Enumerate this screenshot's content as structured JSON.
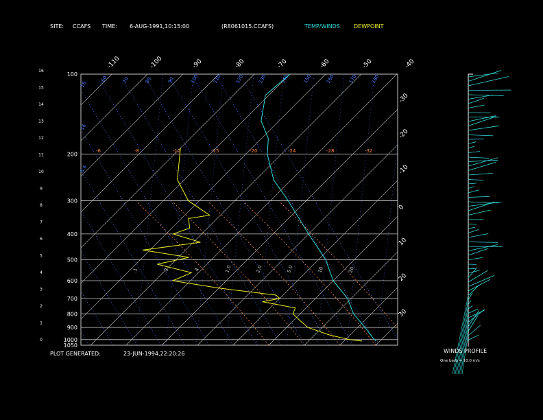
{
  "header": {
    "site_label": "SITE:",
    "site_value": "CCAFS",
    "time_label": "TIME:",
    "time_value": "6-AUG-1991,10:15:00",
    "file_id": "(R8061015.CCAFS)",
    "legend_temp": "TEMP/WINDS",
    "legend_dew": "DEWPOINT"
  },
  "footer": {
    "generated_label": "PLOT GENERATED:",
    "generated_value": "23-JUN-1994,22:20:26"
  },
  "winds": {
    "title": "WINDS PROFILE",
    "note": "One barb = 10.0 m/s"
  },
  "colors": {
    "background": "#000000",
    "grid": "#c8c8c8",
    "temp": "#33dddd",
    "dew": "#eeee22",
    "blue": "#4a78ff",
    "orange": "#ff8844",
    "header_text": "#ffffff"
  },
  "chart_data": {
    "type": "line",
    "title": "",
    "y_scale": "log pressure",
    "pressure_levels": [
      "100",
      "200",
      "300",
      "400",
      "500",
      "600",
      "700",
      "800",
      "900",
      "1000",
      "1050"
    ],
    "height_ticks": [
      "0",
      "1",
      "2",
      "3",
      "4",
      "5",
      "6",
      "7",
      "8",
      "9",
      "10",
      "11",
      "12",
      "13",
      "14",
      "15",
      "16"
    ],
    "isotherm_top_labels": [
      "-110",
      "-100",
      "-90",
      "-80",
      "-70",
      "-60",
      "-50",
      "-40"
    ],
    "isotherm_right_labels": [
      "-30",
      "-20",
      "-10",
      "0",
      "10",
      "20",
      "30"
    ],
    "ylim": [
      1050,
      100
    ],
    "series": [
      {
        "name": "TEMP/WINDS",
        "points": [
          [
            100,
            -70
          ],
          [
            120,
            -71
          ],
          [
            150,
            -65
          ],
          [
            175,
            -58
          ],
          [
            200,
            -54
          ],
          [
            250,
            -45
          ],
          [
            300,
            -35
          ],
          [
            400,
            -20
          ],
          [
            500,
            -8
          ],
          [
            600,
            0
          ],
          [
            700,
            9
          ],
          [
            800,
            15
          ],
          [
            900,
            22
          ],
          [
            1000,
            28
          ],
          [
            1013,
            29
          ]
        ]
      },
      {
        "name": "DEWPOINT",
        "points": [
          [
            190,
            -80
          ],
          [
            250,
            -72
          ],
          [
            300,
            -63
          ],
          [
            340,
            -53
          ],
          [
            350,
            -58
          ],
          [
            380,
            -55
          ],
          [
            400,
            -58
          ],
          [
            430,
            -48
          ],
          [
            460,
            -62
          ],
          [
            490,
            -47
          ],
          [
            520,
            -54
          ],
          [
            560,
            -42
          ],
          [
            600,
            -45
          ],
          [
            640,
            -30
          ],
          [
            680,
            -12
          ],
          [
            700,
            -10
          ],
          [
            720,
            -14
          ],
          [
            760,
            -3
          ],
          [
            800,
            -2
          ],
          [
            850,
            2
          ],
          [
            900,
            6
          ],
          [
            960,
            14
          ],
          [
            1000,
            21
          ],
          [
            1013,
            25
          ]
        ]
      }
    ],
    "mixing_ratio_labels": [
      ".1",
      ".2",
      ".4",
      "1.0",
      "2.0",
      "5.0",
      "10",
      "20"
    ],
    "dry_adiabat_labels": [
      "-6",
      "-8",
      "-12",
      "-15",
      "-20",
      "-24",
      "-28",
      "-32"
    ],
    "blue_labels": [
      "16",
      "16",
      "5.6",
      "-60",
      "70",
      "80",
      "90",
      "100",
      "110",
      "120",
      "130",
      "140",
      "150",
      "160",
      "170",
      "180"
    ]
  }
}
